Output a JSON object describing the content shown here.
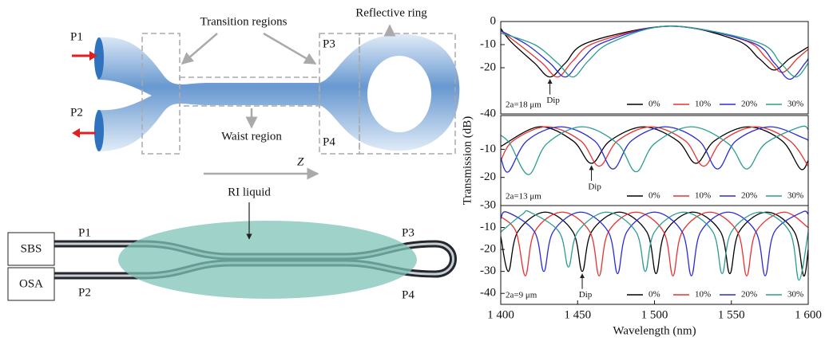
{
  "diagram": {
    "top": {
      "p1": "P1",
      "p2": "P2",
      "p3": "P3",
      "p4": "P4",
      "transition": "Transition regions",
      "ring": "Reflective ring",
      "waist": "Waist region",
      "z": "Z"
    },
    "bottom": {
      "liquid": "RI liquid",
      "sbs": "SBS",
      "osa": "OSA",
      "p1": "P1",
      "p2": "P2",
      "p3": "P3",
      "p4": "P4"
    }
  },
  "chart_data": [
    {
      "type": "line",
      "fiber_label": "2a=18 μm",
      "dip_label": "Dip",
      "ylim": [
        -40,
        0
      ],
      "yticks": [
        0,
        -10,
        -20,
        -40
      ],
      "xlim": [
        1400,
        1600
      ],
      "series": [
        {
          "name": "0%",
          "color": "#000000",
          "x": [
            1400,
            1407,
            1422,
            1432,
            1442,
            1457,
            1510,
            1553,
            1568,
            1578,
            1588,
            1600
          ],
          "values": [
            -3,
            -9,
            -18,
            -24,
            -18,
            -9,
            -2,
            -8,
            -16,
            -21,
            -16,
            -11
          ]
        },
        {
          "name": "10%",
          "color": "#e8322f",
          "x": [
            1400,
            1412,
            1427,
            1437,
            1447,
            1462,
            1510,
            1558,
            1573,
            1583,
            1593,
            1600
          ],
          "values": [
            -4,
            -10,
            -18,
            -24,
            -17,
            -9,
            -2,
            -8,
            -16,
            -22,
            -16,
            -12
          ]
        },
        {
          "name": "20%",
          "color": "#2b2bd6",
          "x": [
            1400,
            1417,
            1432,
            1442,
            1452,
            1467,
            1510,
            1563,
            1578,
            1588,
            1598,
            1600
          ],
          "values": [
            -4,
            -10,
            -18,
            -24,
            -17,
            -9,
            -2,
            -9,
            -18,
            -25,
            -18,
            -16
          ]
        },
        {
          "name": "30%",
          "color": "#2a9d8f",
          "x": [
            1400,
            1422,
            1437,
            1447,
            1457,
            1472,
            1510,
            1567,
            1582,
            1592,
            1600
          ],
          "values": [
            -5,
            -10,
            -18,
            -24,
            -17,
            -9,
            -2,
            -9,
            -18,
            -24,
            -18
          ]
        }
      ]
    },
    {
      "type": "line",
      "fiber_label": "2a=13 μm",
      "dip_label": "Dip",
      "ylabel": "Transmission (dB)",
      "ylim": [
        -30,
        2
      ],
      "yticks": [
        -10,
        -20,
        -30
      ],
      "xlim": [
        1400,
        1600
      ],
      "series": [
        {
          "name": "0%",
          "color": "#000000",
          "x": [
            1400,
            1425,
            1447,
            1459,
            1471,
            1493,
            1515,
            1527,
            1539,
            1561,
            1583,
            1595,
            1600
          ],
          "values": [
            -9,
            -2,
            -7,
            -15,
            -7,
            -2,
            -7,
            -15,
            -7,
            -2,
            -7,
            -17,
            -14
          ]
        },
        {
          "name": "10%",
          "color": "#e8322f",
          "x": [
            1400,
            1408,
            1430,
            1452,
            1464,
            1476,
            1498,
            1520,
            1532,
            1544,
            1566,
            1588,
            1600
          ],
          "values": [
            -14,
            -7,
            -2,
            -7,
            -16,
            -7,
            -2,
            -7,
            -16,
            -7,
            -2,
            -7,
            -16
          ]
        },
        {
          "name": "20%",
          "color": "#2b2bd6",
          "x": [
            1400,
            1405,
            1417,
            1439,
            1461,
            1473,
            1485,
            1507,
            1529,
            1541,
            1553,
            1575,
            1597,
            1600
          ],
          "values": [
            -13,
            -18,
            -7,
            -2,
            -7,
            -17,
            -7,
            -2,
            -7,
            -17,
            -7,
            -2,
            -6,
            -7
          ]
        },
        {
          "name": "30%",
          "color": "#2a9d8f",
          "x": [
            1400,
            1406,
            1418,
            1430,
            1453,
            1476,
            1488,
            1500,
            1524,
            1548,
            1560,
            1572,
            1595,
            1600
          ],
          "values": [
            -5,
            -8,
            -19,
            -8,
            -2,
            -8,
            -18,
            -8,
            -2,
            -8,
            -17,
            -8,
            -2,
            -3
          ]
        }
      ]
    },
    {
      "type": "line",
      "fiber_label": "2a=9 μm",
      "dip_label": "Dip",
      "xlabel": "Wavelength (nm)",
      "ylim": [
        -45,
        0
      ],
      "yticks": [
        -10,
        -20,
        -30,
        -40
      ],
      "xlim": [
        1400,
        1600
      ],
      "xticks": [
        {
          "value": 1400,
          "label": "1 400"
        },
        {
          "value": 1450,
          "label": "1 450"
        },
        {
          "value": 1500,
          "label": "1 500"
        },
        {
          "value": 1550,
          "label": "1 550"
        },
        {
          "value": 1600,
          "label": "1 600"
        }
      ],
      "series": [
        {
          "name": "0%",
          "color": "#000000",
          "x": [
            1400,
            1405,
            1411,
            1429,
            1447,
            1453,
            1459,
            1477,
            1495,
            1501,
            1507,
            1525,
            1543,
            1549,
            1555,
            1573,
            1591,
            1597,
            1600
          ],
          "values": [
            -14,
            -30,
            -12,
            -3,
            -12,
            -30,
            -12,
            -3,
            -12,
            -31,
            -12,
            -3,
            -12,
            -31,
            -12,
            -3,
            -12,
            -32,
            -20
          ]
        },
        {
          "name": "10%",
          "color": "#e8322f",
          "x": [
            1400,
            1410,
            1416,
            1422,
            1440,
            1458,
            1464,
            1470,
            1488,
            1506,
            1512,
            1518,
            1536,
            1554,
            1560,
            1566,
            1584,
            1600
          ],
          "values": [
            -5,
            -12,
            -32,
            -12,
            -3,
            -12,
            -32,
            -12,
            -3,
            -12,
            -32,
            -12,
            -3,
            -12,
            -32,
            -12,
            -3,
            -10
          ]
        },
        {
          "name": "20%",
          "color": "#2b2bd6",
          "x": [
            1400,
            1404,
            1422,
            1428,
            1434,
            1452,
            1470,
            1476,
            1482,
            1500,
            1518,
            1524,
            1530,
            1548,
            1566,
            1572,
            1578,
            1596,
            1600
          ],
          "values": [
            -6,
            -3,
            -12,
            -30,
            -12,
            -3,
            -12,
            -31,
            -12,
            -3,
            -12,
            -32,
            -12,
            -3,
            -12,
            -32,
            -12,
            -3,
            -4
          ]
        },
        {
          "name": "30%",
          "color": "#2a9d8f",
          "x": [
            1400,
            1414,
            1419,
            1438,
            1444,
            1450,
            1469,
            1488,
            1494,
            1500,
            1519,
            1538,
            1544,
            1550,
            1569,
            1588,
            1594,
            1600
          ],
          "values": [
            -12,
            -4,
            -3,
            -12,
            -28,
            -12,
            -3,
            -12,
            -30,
            -12,
            -3,
            -12,
            -31,
            -12,
            -3,
            -12,
            -34,
            -12
          ]
        }
      ]
    }
  ]
}
